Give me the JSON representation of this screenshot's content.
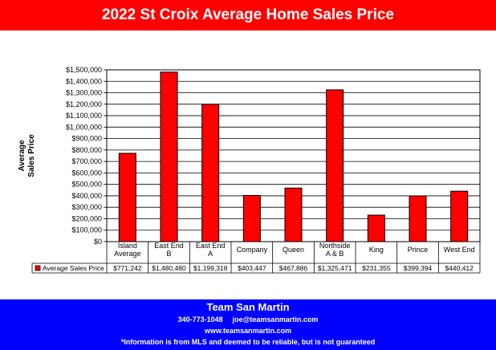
{
  "banner": {
    "title": "2022 St Croix Average Home Sales Price"
  },
  "footer": {
    "name": "Team San Martin",
    "phone": "340-773-1048",
    "email": "joe@teamsanmartin.com",
    "website": "www.teamsanmartin.com",
    "disclaimer": "*Information is from MLS and deemed to be reliable, but is not guaranteed"
  },
  "colors": {
    "banner": "#ff0000",
    "footer": "#0000ff",
    "bar": "#ff0000",
    "bar_outline": "#000000"
  },
  "chart_data": {
    "type": "bar",
    "title": "",
    "xlabel": "",
    "ylabel": "Average Sales Price",
    "ylim": [
      0,
      1500000
    ],
    "y_tick_step": 100000,
    "y_ticks": [
      "$0",
      "$100,000",
      "$200,000",
      "$300,000",
      "$400,000",
      "$500,000",
      "$600,000",
      "$700,000",
      "$800,000",
      "$900,000",
      "$1,000,000",
      "$1,100,000",
      "$1,200,000",
      "$1,300,000",
      "$1,400,000",
      "$1,500,000"
    ],
    "grid": true,
    "legend": "data-table",
    "categories": [
      [
        "Island",
        "Average"
      ],
      [
        "East End",
        "B"
      ],
      [
        "East End",
        "A"
      ],
      [
        "Company"
      ],
      [
        "Queen"
      ],
      [
        "Northside",
        "A & B"
      ],
      [
        "King"
      ],
      [
        "Prince"
      ],
      [
        "West End"
      ]
    ],
    "series": [
      {
        "name": "Average Sales Price",
        "values": [
          771242,
          1480480,
          1199318,
          403447,
          467886,
          1325471,
          231355,
          399394,
          440412
        ],
        "labels": [
          "$771,242",
          "$1,480,480",
          "$1,199,318",
          "$403,447",
          "$467,886",
          "$1,325,471",
          "$231,355",
          "$399,394",
          "$440,412"
        ]
      }
    ]
  }
}
